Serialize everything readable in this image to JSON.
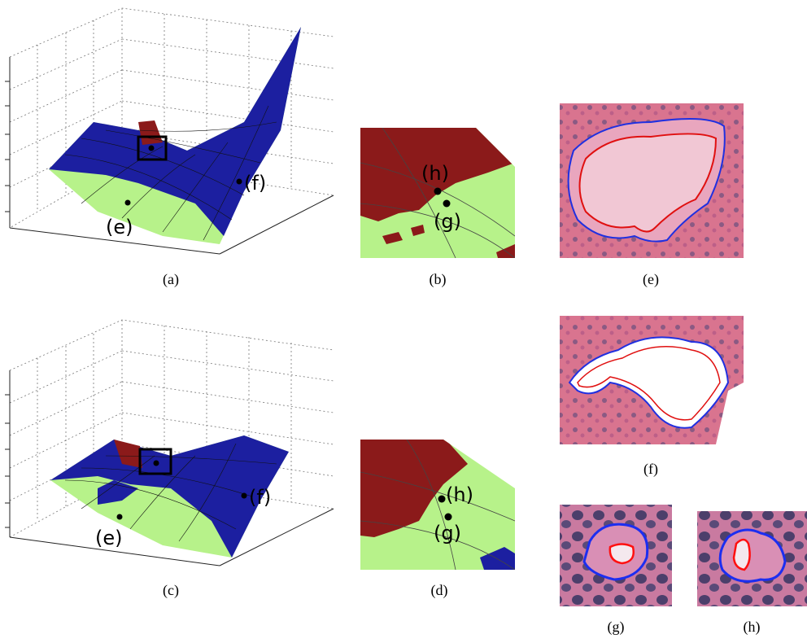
{
  "panels": [
    {
      "caption": "(a)",
      "annotations": [
        "(e)",
        "(f)"
      ]
    },
    {
      "caption": "(b)",
      "annotations": [
        "(h)",
        "(g)"
      ]
    },
    {
      "caption": "(c)",
      "annotations": [
        "(e)",
        "(f)"
      ]
    },
    {
      "caption": "(d)",
      "annotations": [
        "(h)",
        "(g)"
      ]
    },
    {
      "caption": "(e)"
    },
    {
      "caption": "(f)"
    },
    {
      "caption": "(g)"
    },
    {
      "caption": "(h)"
    }
  ]
}
